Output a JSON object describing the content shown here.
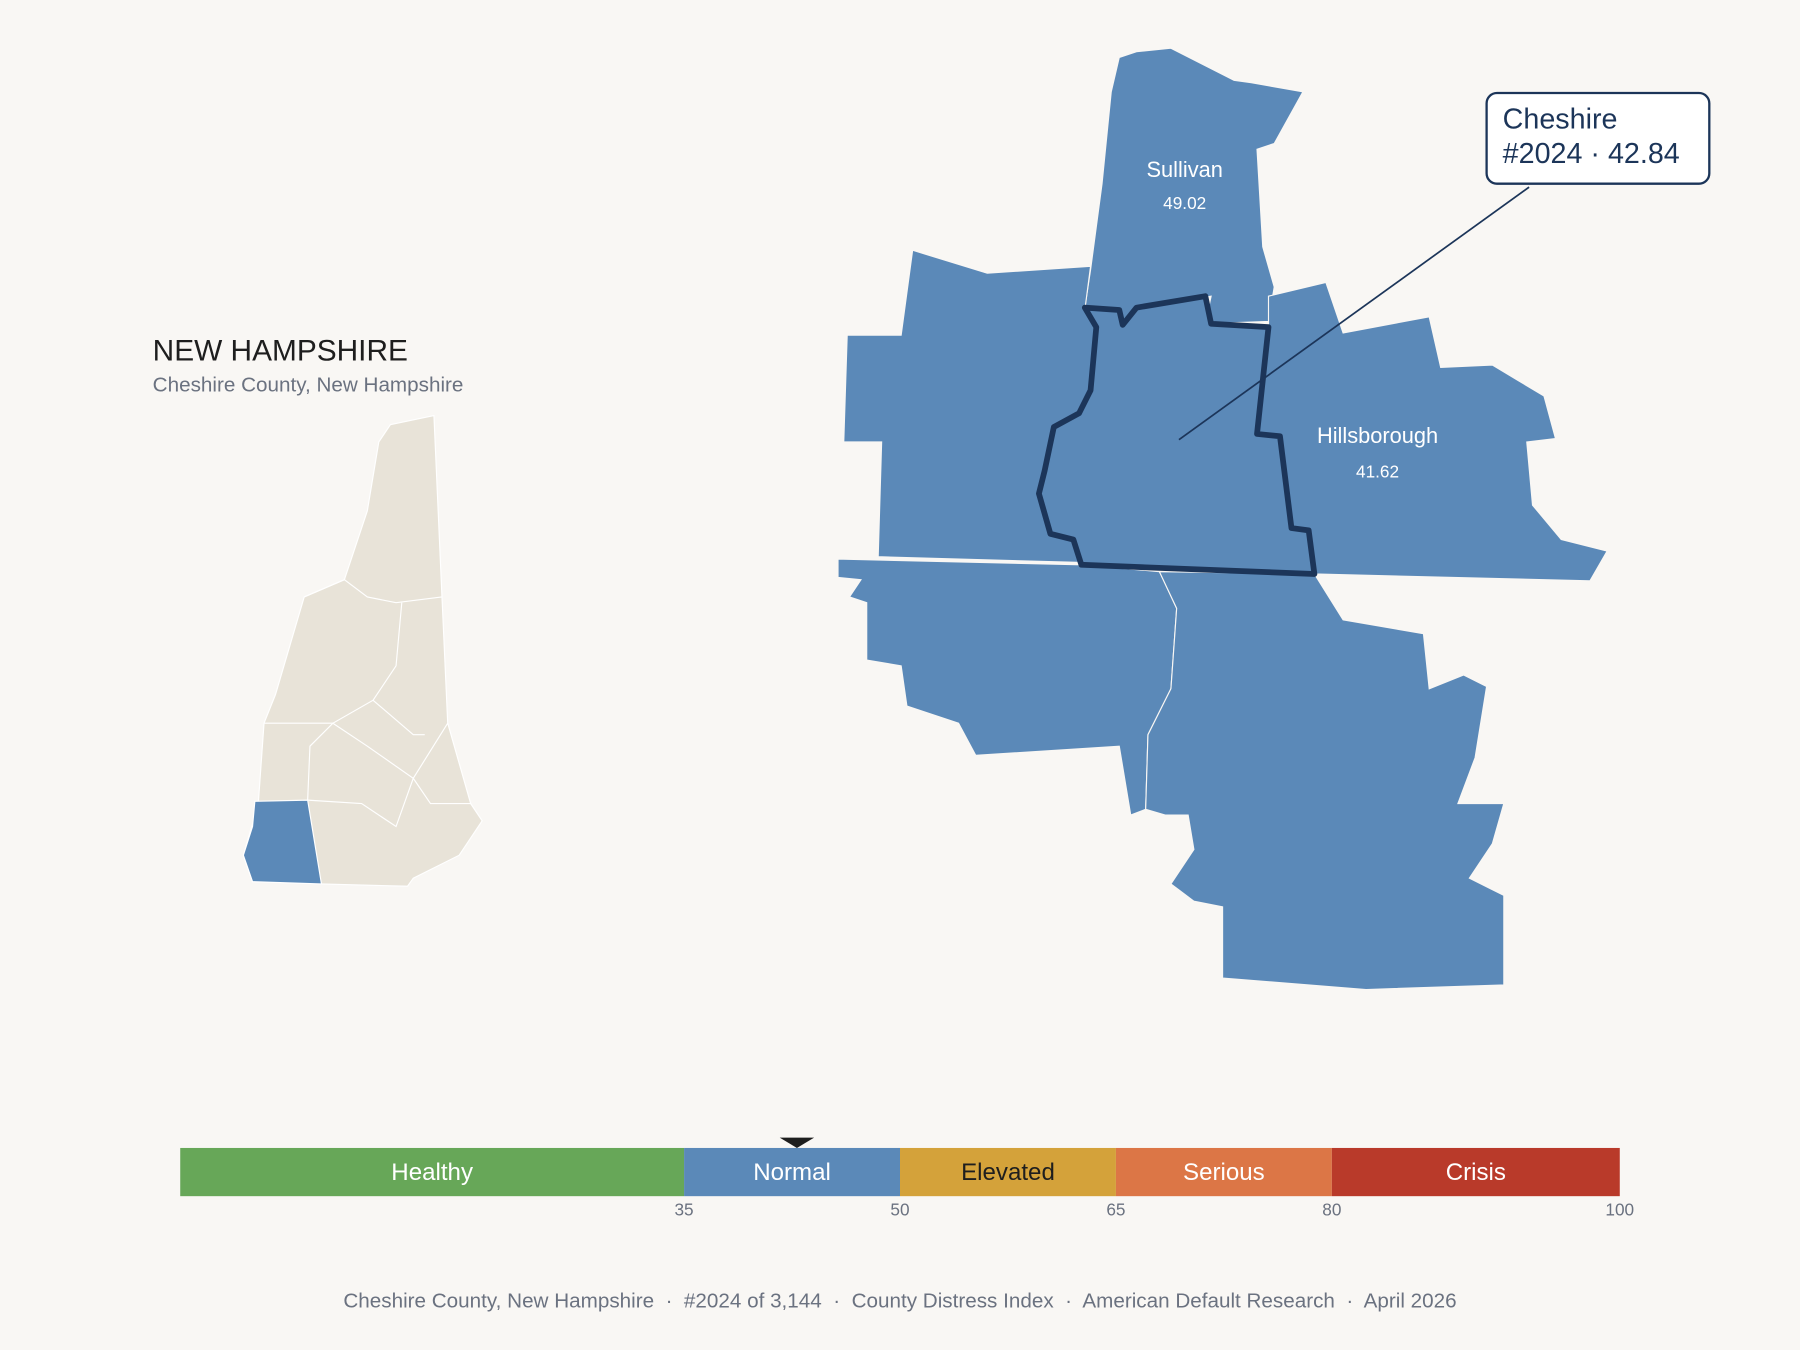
{
  "inset": {
    "title": "NEW HAMPSHIRE",
    "subtitle": "Cheshire County, New Hampshire"
  },
  "map": {
    "counties": [
      {
        "name": "Sullivan",
        "value": 49.02
      },
      {
        "name": "Hillsborough",
        "value": 41.62
      }
    ]
  },
  "callout": {
    "name": "Cheshire",
    "label": "#2024 · 42.84",
    "value": 42.84
  },
  "scale": {
    "min": 0,
    "max": 100,
    "ticks": [
      35,
      50,
      65,
      80,
      100
    ],
    "bands": [
      {
        "label": "Healthy",
        "from": 0,
        "to": 35,
        "color": "#67a758"
      },
      {
        "label": "Normal",
        "from": 35,
        "to": 50,
        "color": "#5b89b8"
      },
      {
        "label": "Elevated",
        "from": 50,
        "to": 65,
        "color": "#d4a23a"
      },
      {
        "label": "Serious",
        "from": 65,
        "to": 80,
        "color": "#dc7646"
      },
      {
        "label": "Crisis",
        "from": 80,
        "to": 100,
        "color": "#b93a2a"
      }
    ]
  },
  "footer": "Cheshire County, New Hampshire  ·  #2024 of 3,144  ·  County Distress Index  ·  American Default Research  ·  April 2026"
}
